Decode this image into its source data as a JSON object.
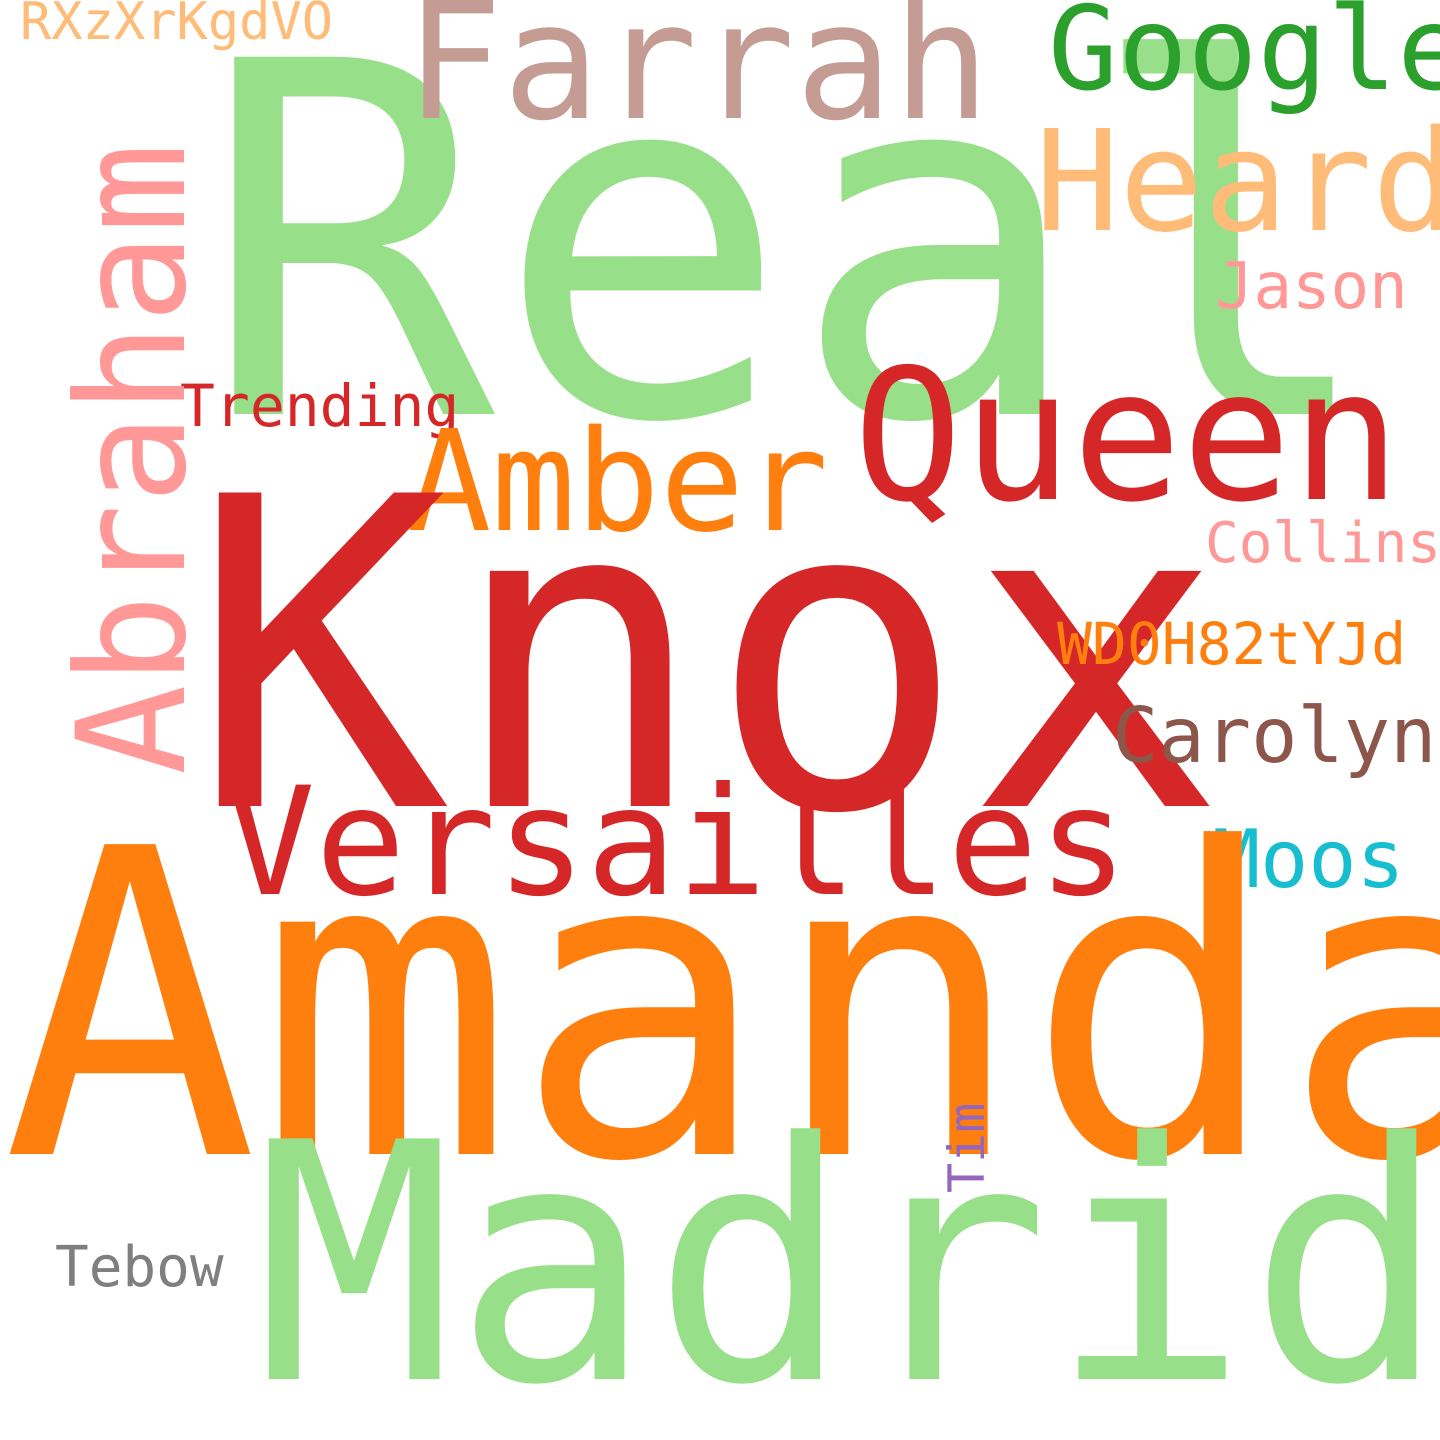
{
  "colors": {
    "background": "#ffffff",
    "light_green": "#98df8a",
    "red": "#d62728",
    "orange": "#ff7f0e",
    "light_orange": "#ffbb78",
    "pink": "#ff9896",
    "rose_brown": "#c49c94",
    "green": "#2ca02c",
    "brown": "#8c564b",
    "cyan": "#17becf",
    "purple": "#9467bd",
    "gray": "#7f7f7f"
  },
  "words": {
    "real": {
      "text": "Real",
      "color": "#98df8a"
    },
    "knox": {
      "text": "Knox",
      "color": "#d62728"
    },
    "amanda": {
      "text": "Amanda",
      "color": "#ff7f0e"
    },
    "madrid": {
      "text": "Madrid",
      "color": "#98df8a"
    },
    "versailles": {
      "text": "Versailles",
      "color": "#d62728"
    },
    "queen": {
      "text": "Queen",
      "color": "#d62728"
    },
    "abraham": {
      "text": "Abraham",
      "color": "#ff9896",
      "orientation": "vertical"
    },
    "farrah": {
      "text": "Farrah",
      "color": "#c49c94"
    },
    "amber": {
      "text": "Amber",
      "color": "#ff7f0e"
    },
    "heard": {
      "text": "Heard",
      "color": "#ffbb78"
    },
    "google": {
      "text": "Google",
      "color": "#2ca02c"
    },
    "jason": {
      "text": "Jason",
      "color": "#ff9896"
    },
    "collins": {
      "text": "Collins",
      "color": "#ff9896"
    },
    "wd0h": {
      "text": "WD0H82tYJd",
      "color": "#ff7f0e"
    },
    "carolyn": {
      "text": "Carolyn",
      "color": "#8c564b"
    },
    "moos": {
      "text": "Moos",
      "color": "#17becf"
    },
    "trending": {
      "text": "Trending",
      "color": "#d62728"
    },
    "rx": {
      "text": "RXzXrKgdVO",
      "color": "#ffbb78"
    },
    "tebow": {
      "text": "Tebow",
      "color": "#7f7f7f"
    },
    "tim": {
      "text": "Tim",
      "color": "#9467bd",
      "orientation": "vertical"
    }
  }
}
